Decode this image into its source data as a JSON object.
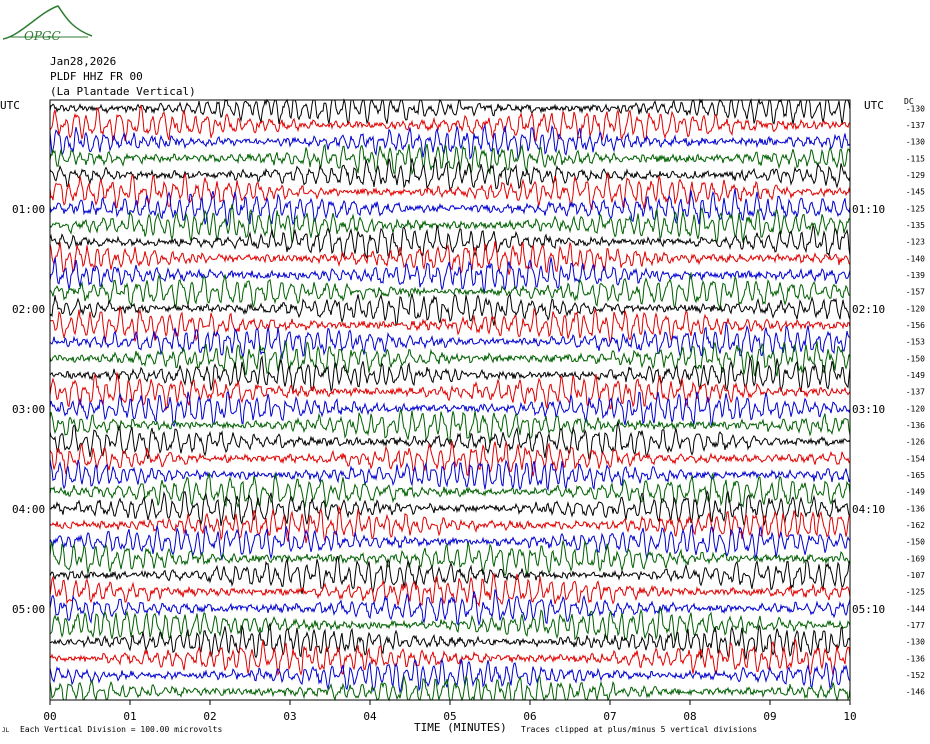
{
  "logo": {
    "text": "OPGC",
    "color": "#2e7d32"
  },
  "header": {
    "date": "Jan28,2026",
    "station": "PLDF HHZ FR 00",
    "description": "(La Plantade Vertical)"
  },
  "left_axis_title": "UTC",
  "right_axis_title": "UTC",
  "dc_title": "DC",
  "footer": {
    "vertical_division": "Each Vertical Division = 100.00 microvolts",
    "clipping": "Traces clipped at plus/minus 5 vertical divisions",
    "small_mark": "JL"
  },
  "chart_data": {
    "type": "line",
    "title": "",
    "xlabel": "TIME (MINUTES)",
    "ylabel": "UTC",
    "xlim": [
      0,
      10
    ],
    "x_ticks": [
      "00",
      "01",
      "02",
      "03",
      "04",
      "05",
      "06",
      "07",
      "08",
      "09",
      "10"
    ],
    "left_hour_labels": [
      "01:00",
      "02:00",
      "03:00",
      "04:00",
      "05:00"
    ],
    "right_time_labels": [
      "01:10",
      "02:10",
      "03:10",
      "04:10",
      "05:10"
    ],
    "trace_count": 36,
    "minutes_per_trace": 10,
    "series_colors": [
      "#000000",
      "#e00000",
      "#0000d0",
      "#006000"
    ],
    "dc_offsets": [
      -130,
      -137,
      -130,
      -115,
      -129,
      -145,
      -125,
      -135,
      -123,
      -140,
      -139,
      -157,
      -120,
      -156,
      -153,
      -150,
      -149,
      -137,
      -120,
      -136,
      -126,
      -154,
      -165,
      -149,
      -136,
      -162,
      -150,
      -169,
      -107,
      -125,
      -144,
      -177,
      -130,
      -136,
      -152,
      -146
    ],
    "clip_divisions": 5,
    "microvolts_per_division": 100
  }
}
